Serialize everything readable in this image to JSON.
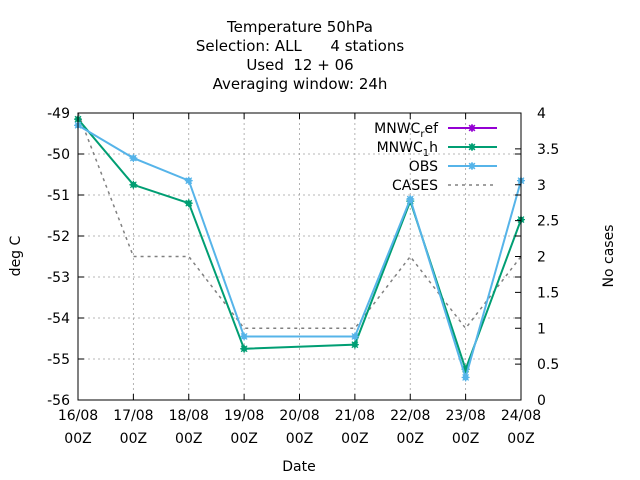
{
  "title_lines": [
    "Temperature 50hPa",
    "Selection: ALL      4 stations",
    "Used  12 + 06",
    "Averaging window: 24h"
  ],
  "chart_data": {
    "type": "line",
    "x": [
      "16/08 00Z",
      "17/08 00Z",
      "18/08 00Z",
      "19/08 00Z",
      "20/08 00Z",
      "21/08 00Z",
      "22/08 00Z",
      "23/08 00Z",
      "24/08 00Z"
    ],
    "x_ticks": [
      {
        "date": "16/08",
        "time": "00Z"
      },
      {
        "date": "17/08",
        "time": "00Z"
      },
      {
        "date": "18/08",
        "time": "00Z"
      },
      {
        "date": "19/08",
        "time": "00Z"
      },
      {
        "date": "20/08",
        "time": "00Z"
      },
      {
        "date": "21/08",
        "time": "00Z"
      },
      {
        "date": "22/08",
        "time": "00Z"
      },
      {
        "date": "23/08",
        "time": "00Z"
      },
      {
        "date": "24/08",
        "time": "00Z"
      }
    ],
    "xlabel": "Date",
    "ylabel": "deg C",
    "y2label": "No cases",
    "ylim": [
      -56,
      -49
    ],
    "y2lim": [
      0,
      4
    ],
    "yticks": [
      -56,
      -55,
      -54,
      -53,
      -52,
      -51,
      -50,
      -49
    ],
    "y2ticks": [
      "0",
      "0.5",
      "1",
      "1.5",
      "2",
      "2.5",
      "3",
      "3.5",
      "4"
    ],
    "grid": true,
    "legend_position": "top-right",
    "series": [
      {
        "name": "MNWC_ref",
        "legend_main": "MNWC",
        "legend_sub": "r",
        "legend_tail": "ef",
        "color": "#9400d3",
        "axis": "y1",
        "dash": false,
        "marker": true,
        "points": []
      },
      {
        "name": "MNWC_1h",
        "legend_main": "MNWC",
        "legend_sub": "1",
        "legend_tail": "h",
        "color": "#009e73",
        "axis": "y1",
        "dash": false,
        "marker": true,
        "points": [
          [
            0,
            -49.15
          ],
          [
            1,
            -50.75
          ],
          [
            2,
            -51.2
          ],
          [
            3,
            -54.75
          ],
          [
            5,
            -54.65
          ],
          [
            6,
            -51.15
          ],
          [
            7,
            -55.25
          ],
          [
            8,
            -51.6
          ]
        ]
      },
      {
        "name": "OBS",
        "legend_main": "OBS",
        "legend_sub": "",
        "legend_tail": "",
        "color": "#56b4e9",
        "axis": "y1",
        "dash": false,
        "marker": true,
        "points": [
          [
            0,
            -49.3
          ],
          [
            1,
            -50.1
          ],
          [
            2,
            -50.65
          ],
          [
            3,
            -54.45
          ],
          [
            5,
            -54.45
          ],
          [
            6,
            -51.1
          ],
          [
            7,
            -55.45
          ],
          [
            8,
            -50.65
          ]
        ]
      },
      {
        "name": "CASES",
        "legend_main": "CASES",
        "legend_sub": "",
        "legend_tail": "",
        "color": "#808080",
        "axis": "y2",
        "dash": true,
        "marker": false,
        "points": [
          [
            0,
            4
          ],
          [
            1,
            2
          ],
          [
            2,
            2
          ],
          [
            3,
            1
          ],
          [
            4,
            1
          ],
          [
            5,
            1
          ],
          [
            6,
            2
          ],
          [
            7,
            1
          ],
          [
            8,
            2
          ]
        ]
      }
    ]
  }
}
